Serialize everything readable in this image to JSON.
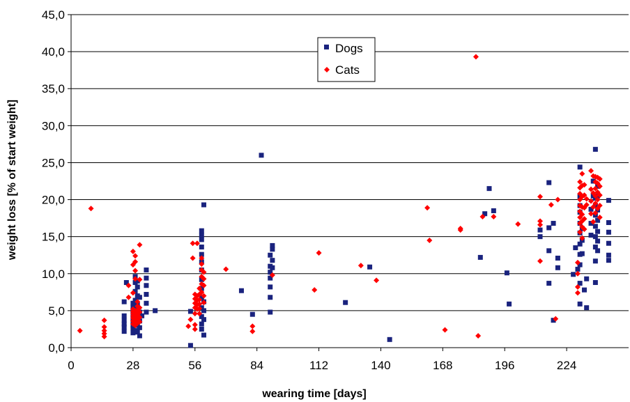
{
  "chart_data": {
    "type": "scatter",
    "xlabel": "wearing time [days]",
    "ylabel": "weight loss [% of start weight]",
    "xlim": [
      0,
      252
    ],
    "ylim": [
      0,
      45
    ],
    "xticks": [
      0,
      28,
      56,
      84,
      112,
      140,
      168,
      196,
      224
    ],
    "xtick_labels": [
      "0",
      "28",
      "56",
      "84",
      "112",
      "140",
      "168",
      "196",
      "224"
    ],
    "yticks": [
      0,
      5,
      10,
      15,
      20,
      25,
      30,
      35,
      40,
      45
    ],
    "ytick_labels": [
      "0,0",
      "5,0",
      "10,0",
      "15,0",
      "20,0",
      "25,0",
      "30,0",
      "35,0",
      "40,0",
      "45,0"
    ],
    "grid": "horizontal",
    "legend_position": "top-center",
    "series": [
      {
        "name": "Dogs",
        "color": "#1a237e",
        "marker": "square",
        "points": [
          [
            24,
            2.2
          ],
          [
            24,
            2.8
          ],
          [
            24,
            3.2
          ],
          [
            24,
            3.7
          ],
          [
            24,
            4.3
          ],
          [
            24,
            6.2
          ],
          [
            25,
            8.8
          ],
          [
            28,
            2.0
          ],
          [
            28,
            2.6
          ],
          [
            28,
            3.0
          ],
          [
            28,
            3.5
          ],
          [
            28,
            4.0
          ],
          [
            28,
            4.5
          ],
          [
            28,
            5.0
          ],
          [
            28,
            5.5
          ],
          [
            28,
            6.0
          ],
          [
            29,
            2.3
          ],
          [
            29,
            3.3
          ],
          [
            29,
            4.2
          ],
          [
            29,
            5.2
          ],
          [
            29,
            6.4
          ],
          [
            29,
            7.6
          ],
          [
            29,
            8.8
          ],
          [
            29,
            9.6
          ],
          [
            30,
            2.1
          ],
          [
            30,
            3.0
          ],
          [
            30,
            3.8
          ],
          [
            30,
            4.6
          ],
          [
            30,
            5.8
          ],
          [
            30,
            7.0
          ],
          [
            30,
            8.2
          ],
          [
            30,
            9.0
          ],
          [
            31,
            1.6
          ],
          [
            31,
            2.7
          ],
          [
            31,
            3.6
          ],
          [
            31,
            4.8
          ],
          [
            31,
            6.8
          ],
          [
            32,
            4.3
          ],
          [
            34,
            4.8
          ],
          [
            34,
            6.0
          ],
          [
            34,
            7.2
          ],
          [
            34,
            8.4
          ],
          [
            34,
            9.4
          ],
          [
            34,
            10.5
          ],
          [
            38,
            5.0
          ],
          [
            54,
            4.9
          ],
          [
            54,
            0.3
          ],
          [
            59,
            2.5
          ],
          [
            59,
            3.2
          ],
          [
            59,
            4.2
          ],
          [
            59,
            5.4
          ],
          [
            59,
            6.8
          ],
          [
            59,
            8.0
          ],
          [
            59,
            9.2
          ],
          [
            59,
            10.5
          ],
          [
            59,
            11.6
          ],
          [
            59,
            12.6
          ],
          [
            59,
            13.6
          ],
          [
            59,
            14.6
          ],
          [
            59,
            15.2
          ],
          [
            59,
            15.8
          ],
          [
            60,
            1.7
          ],
          [
            60,
            3.8
          ],
          [
            60,
            5.0
          ],
          [
            60,
            6.2
          ],
          [
            60,
            19.3
          ],
          [
            77,
            7.7
          ],
          [
            82,
            4.5
          ],
          [
            86,
            26.0
          ],
          [
            90,
            4.8
          ],
          [
            90,
            6.8
          ],
          [
            90,
            8.2
          ],
          [
            90,
            9.4
          ],
          [
            90,
            10.2
          ],
          [
            90,
            11.0
          ],
          [
            90,
            12.5
          ],
          [
            91,
            10.8
          ],
          [
            91,
            11.8
          ],
          [
            91,
            13.3
          ],
          [
            91,
            13.8
          ],
          [
            135,
            10.9
          ],
          [
            124,
            6.1
          ],
          [
            144,
            1.1
          ],
          [
            185,
            12.2
          ],
          [
            187,
            18.1
          ],
          [
            189,
            21.5
          ],
          [
            191,
            18.5
          ],
          [
            197,
            10.1
          ],
          [
            198,
            5.9
          ],
          [
            212,
            15.0
          ],
          [
            212,
            15.9
          ],
          [
            216,
            22.3
          ],
          [
            216,
            16.2
          ],
          [
            216,
            13.1
          ],
          [
            216,
            8.7
          ],
          [
            218,
            16.8
          ],
          [
            218,
            3.7
          ],
          [
            220,
            12.1
          ],
          [
            220,
            10.8
          ],
          [
            227,
            9.9
          ],
          [
            228,
            13.5
          ],
          [
            229,
            10.6
          ],
          [
            230,
            5.9
          ],
          [
            230,
            8.7
          ],
          [
            230,
            11.2
          ],
          [
            230,
            12.6
          ],
          [
            230,
            14.0
          ],
          [
            230,
            15.5
          ],
          [
            230,
            16.8
          ],
          [
            230,
            18.3
          ],
          [
            230,
            19.2
          ],
          [
            230,
            20.4
          ],
          [
            230,
            24.4
          ],
          [
            231,
            12.7
          ],
          [
            231,
            14.5
          ],
          [
            231,
            16.1
          ],
          [
            232,
            7.8
          ],
          [
            233,
            5.4
          ],
          [
            233,
            9.3
          ],
          [
            235,
            15.2
          ],
          [
            235,
            16.8
          ],
          [
            235,
            18.7
          ],
          [
            236,
            22.5
          ],
          [
            236,
            20.5
          ],
          [
            237,
            8.8
          ],
          [
            237,
            11.7
          ],
          [
            237,
            13.6
          ],
          [
            237,
            15.0
          ],
          [
            237,
            16.4
          ],
          [
            237,
            17.9
          ],
          [
            237,
            19.2
          ],
          [
            237,
            20.2
          ],
          [
            237,
            26.8
          ],
          [
            238,
            13.1
          ],
          [
            238,
            14.4
          ],
          [
            238,
            15.7
          ],
          [
            238,
            17.2
          ],
          [
            238,
            18.6
          ],
          [
            238,
            20.5
          ],
          [
            238,
            21.8
          ],
          [
            243,
            11.8
          ],
          [
            243,
            12.5
          ],
          [
            243,
            14.1
          ],
          [
            243,
            15.6
          ],
          [
            243,
            16.9
          ],
          [
            243,
            19.9
          ]
        ]
      },
      {
        "name": "Cats",
        "color": "#ff0000",
        "marker": "diamond",
        "points": [
          [
            4,
            2.3
          ],
          [
            9,
            18.8
          ],
          [
            15,
            1.5
          ],
          [
            15,
            1.9
          ],
          [
            15,
            2.3
          ],
          [
            15,
            2.8
          ],
          [
            15,
            3.7
          ],
          [
            26,
            6.8
          ],
          [
            26,
            8.4
          ],
          [
            28,
            3.2
          ],
          [
            28,
            3.6
          ],
          [
            28,
            4.0
          ],
          [
            28,
            4.3
          ],
          [
            28,
            4.6
          ],
          [
            28,
            4.9
          ],
          [
            28,
            5.2
          ],
          [
            28,
            7.4
          ],
          [
            28,
            11.2
          ],
          [
            28,
            13.0
          ],
          [
            29,
            3.0
          ],
          [
            29,
            3.4
          ],
          [
            29,
            3.8
          ],
          [
            29,
            4.1
          ],
          [
            29,
            4.4
          ],
          [
            29,
            4.7
          ],
          [
            29,
            5.0
          ],
          [
            29,
            9.3
          ],
          [
            29,
            10.4
          ],
          [
            29,
            11.6
          ],
          [
            29,
            12.4
          ],
          [
            30,
            3.3
          ],
          [
            30,
            3.9
          ],
          [
            30,
            4.5
          ],
          [
            30,
            5.1
          ],
          [
            30,
            5.6
          ],
          [
            30,
            6.2
          ],
          [
            31,
            3.5
          ],
          [
            31,
            4.1
          ],
          [
            31,
            4.8
          ],
          [
            31,
            5.4
          ],
          [
            31,
            9.2
          ],
          [
            31,
            13.9
          ],
          [
            53,
            2.9
          ],
          [
            54,
            3.8
          ],
          [
            55,
            12.1
          ],
          [
            55,
            14.1
          ],
          [
            56,
            2.5
          ],
          [
            56,
            3.1
          ],
          [
            56,
            4.6
          ],
          [
            56,
            5.4
          ],
          [
            56,
            6.0
          ],
          [
            56,
            6.6
          ],
          [
            56,
            7.2
          ],
          [
            57,
            5.2
          ],
          [
            57,
            5.8
          ],
          [
            57,
            6.4
          ],
          [
            57,
            7.0
          ],
          [
            57,
            14.1
          ],
          [
            58,
            4.6
          ],
          [
            58,
            5.3
          ],
          [
            58,
            5.9
          ],
          [
            58,
            6.5
          ],
          [
            58,
            7.2
          ],
          [
            58,
            8.0
          ],
          [
            59,
            7.5
          ],
          [
            59,
            8.6
          ],
          [
            59,
            9.6
          ],
          [
            59,
            10.5
          ],
          [
            59,
            11.3
          ],
          [
            59,
            12.1
          ],
          [
            60,
            6.1
          ],
          [
            60,
            7.0
          ],
          [
            60,
            8.4
          ],
          [
            60,
            9.3
          ],
          [
            60,
            10.2
          ],
          [
            70,
            10.6
          ],
          [
            82,
            2.2
          ],
          [
            82,
            2.9
          ],
          [
            91,
            9.8
          ],
          [
            110,
            7.8
          ],
          [
            112,
            12.8
          ],
          [
            131,
            11.1
          ],
          [
            138,
            9.1
          ],
          [
            161,
            18.9
          ],
          [
            162,
            14.5
          ],
          [
            169,
            2.4
          ],
          [
            176,
            15.9
          ],
          [
            176,
            16.1
          ],
          [
            184,
            1.6
          ],
          [
            183,
            39.3
          ],
          [
            186,
            17.7
          ],
          [
            191,
            17.7
          ],
          [
            202,
            16.7
          ],
          [
            212,
            11.7
          ],
          [
            212,
            16.6
          ],
          [
            212,
            17.1
          ],
          [
            212,
            20.4
          ],
          [
            217,
            19.3
          ],
          [
            219,
            3.9
          ],
          [
            220,
            20.0
          ],
          [
            229,
            7.4
          ],
          [
            229,
            8.2
          ],
          [
            229,
            10.0
          ],
          [
            229,
            11.5
          ],
          [
            230,
            15.6
          ],
          [
            230,
            16.8
          ],
          [
            230,
            17.6
          ],
          [
            230,
            18.4
          ],
          [
            230,
            19.2
          ],
          [
            230,
            20.0
          ],
          [
            230,
            20.8
          ],
          [
            230,
            21.6
          ],
          [
            230,
            22.4
          ],
          [
            231,
            14.8
          ],
          [
            231,
            16.3
          ],
          [
            231,
            17.1
          ],
          [
            231,
            18.0
          ],
          [
            231,
            19.0
          ],
          [
            231,
            20.4
          ],
          [
            231,
            21.9
          ],
          [
            231,
            23.5
          ],
          [
            232,
            16.0
          ],
          [
            232,
            17.4
          ],
          [
            232,
            18.9
          ],
          [
            232,
            20.6
          ],
          [
            232,
            22.0
          ],
          [
            233,
            19.3
          ],
          [
            233,
            20.1
          ],
          [
            235,
            18.1
          ],
          [
            235,
            19.8
          ],
          [
            235,
            21.4
          ],
          [
            235,
            23.9
          ],
          [
            236,
            17.0
          ],
          [
            236,
            19.0
          ],
          [
            236,
            20.9
          ],
          [
            236,
            23.2
          ],
          [
            237,
            18.2
          ],
          [
            237,
            19.5
          ],
          [
            237,
            20.5
          ],
          [
            237,
            21.5
          ],
          [
            237,
            22.4
          ],
          [
            237,
            23.1
          ],
          [
            238,
            18.8
          ],
          [
            238,
            20.0
          ],
          [
            238,
            21.0
          ],
          [
            238,
            22.2
          ],
          [
            238,
            23.0
          ],
          [
            239,
            17.6
          ],
          [
            239,
            19.2
          ],
          [
            239,
            20.6
          ],
          [
            239,
            21.8
          ],
          [
            239,
            22.8
          ]
        ]
      }
    ]
  }
}
